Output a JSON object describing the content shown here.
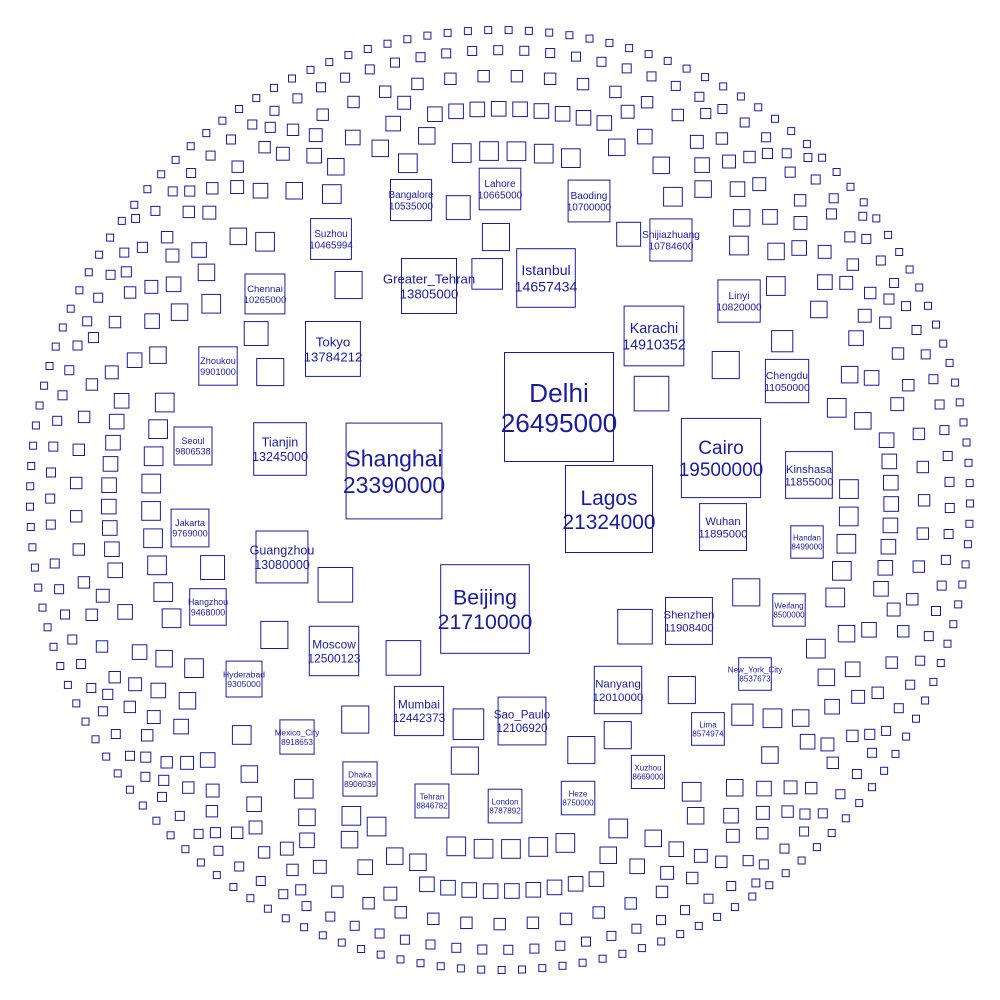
{
  "chart_data": {
    "type": "square-packing",
    "title": "",
    "series_color": "#1b1b9e",
    "background": "#ffffff",
    "unlabeled_square_count": 560,
    "cities": [
      {
        "name": "Delhi",
        "value": 26495000
      },
      {
        "name": "Shanghai",
        "value": 23390000
      },
      {
        "name": "Lagos",
        "value": 21324000
      },
      {
        "name": "Beijing",
        "value": 21710000
      },
      {
        "name": "Cairo",
        "value": 19500000
      },
      {
        "name": "Karachi",
        "value": 14910352
      },
      {
        "name": "Istanbul",
        "value": 14657434
      },
      {
        "name": "Greater_Tehran",
        "value": 13805000
      },
      {
        "name": "Tokyo",
        "value": 13784212
      },
      {
        "name": "Tianjin",
        "value": 13245000
      },
      {
        "name": "Guangzhou",
        "value": 13080000
      },
      {
        "name": "Moscow",
        "value": 12500123
      },
      {
        "name": "Mumbai",
        "value": 12442373
      },
      {
        "name": "Sao_Paulo",
        "value": 12106920
      },
      {
        "name": "Nanyang",
        "value": 12010000
      },
      {
        "name": "Shenzhen",
        "value": 11908400
      },
      {
        "name": "Wuhan",
        "value": 11895000
      },
      {
        "name": "Kinshasa",
        "value": 11855000
      },
      {
        "name": "Chengdu",
        "value": 11050000
      },
      {
        "name": "Linyi",
        "value": 10820000
      },
      {
        "name": "Shijiazhuang",
        "value": 10784600
      },
      {
        "name": "Baoding",
        "value": 10700000
      },
      {
        "name": "Lahore",
        "value": 10665000
      },
      {
        "name": "Bangalore",
        "value": 10535000
      },
      {
        "name": "Suzhou",
        "value": 10465994
      },
      {
        "name": "Chennai",
        "value": 10265000
      },
      {
        "name": "Zhoukou",
        "value": 9901000
      },
      {
        "name": "Jakarta",
        "value": 9769000
      },
      {
        "name": "Seoul",
        "value": 9806538
      },
      {
        "name": "Hangzhou",
        "value": 9468000
      },
      {
        "name": "Hyderabad",
        "value": 9305000
      },
      {
        "name": "Mexico_City",
        "value": 8918653
      },
      {
        "name": "Dhaka",
        "value": 8906039
      },
      {
        "name": "Tehran",
        "value": 8846782
      },
      {
        "name": "London",
        "value": 8787892
      },
      {
        "name": "Heze",
        "value": 8750000
      },
      {
        "name": "Xuzhou",
        "value": 8669000
      },
      {
        "name": "Lima",
        "value": 8574974
      },
      {
        "name": "New_York_City",
        "value": 8537673
      },
      {
        "name": "Weifang",
        "value": 8500000
      },
      {
        "name": "Handan",
        "value": 8499000
      }
    ]
  }
}
